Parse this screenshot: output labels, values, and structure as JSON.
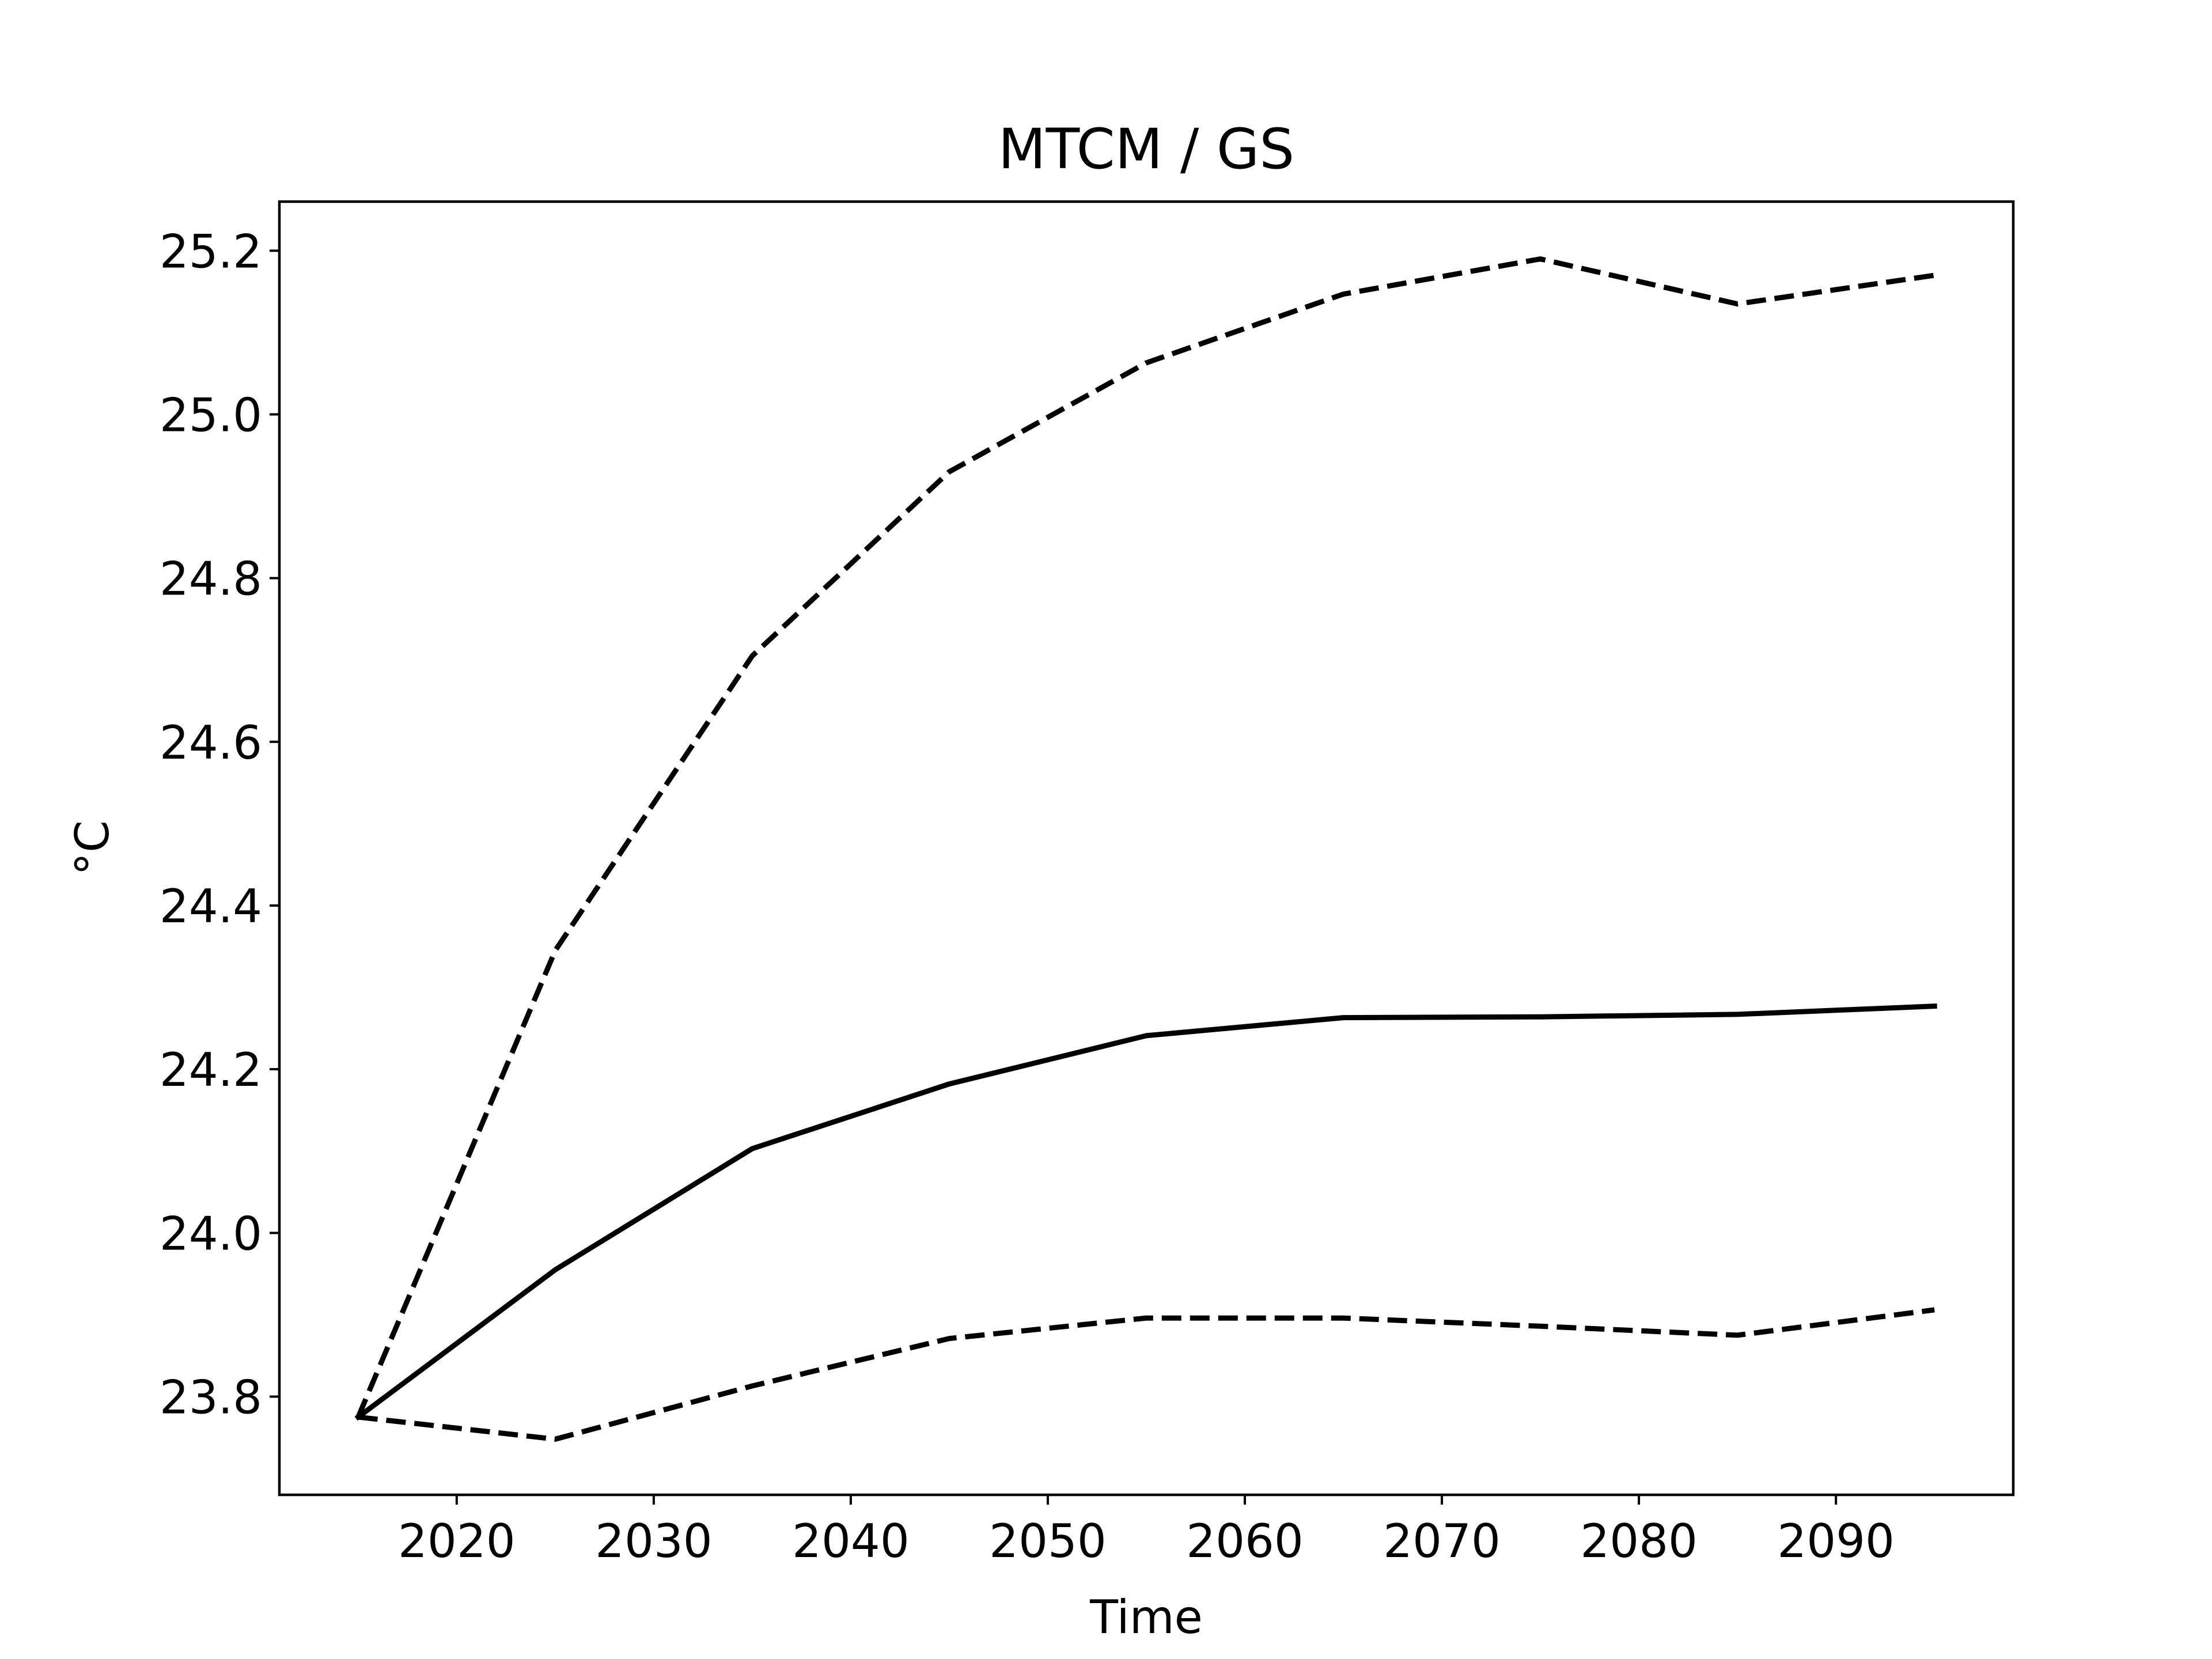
{
  "chart_data": {
    "type": "line",
    "title": "MTCM / GS",
    "xlabel": "Time",
    "ylabel": "°C",
    "x": [
      2015,
      2025,
      2035,
      2045,
      2055,
      2065,
      2075,
      2085,
      2095
    ],
    "xlim": [
      2011.0,
      2099.0
    ],
    "ylim": [
      23.68,
      25.26
    ],
    "xticks": [
      2020,
      2030,
      2040,
      2050,
      2060,
      2070,
      2080,
      2090
    ],
    "yticks": [
      23.8,
      24.0,
      24.2,
      24.4,
      24.6,
      24.8,
      25.0,
      25.2
    ],
    "xtick_labels": [
      "2020",
      "2030",
      "2040",
      "2050",
      "2060",
      "2070",
      "2080",
      "2090"
    ],
    "ytick_labels": [
      "23.8",
      "24.0",
      "24.2",
      "24.4",
      "24.6",
      "24.8",
      "25.0",
      "25.2"
    ],
    "grid": false,
    "series": [
      {
        "style": "solid",
        "color": "#000000",
        "values": [
          23.775,
          23.955,
          24.103,
          24.182,
          24.241,
          24.263,
          24.264,
          24.267,
          24.277
        ]
      },
      {
        "style": "dashed",
        "color": "#000000",
        "values": [
          23.775,
          24.345,
          24.705,
          24.93,
          25.063,
          25.147,
          25.19,
          25.135,
          25.17
        ]
      },
      {
        "style": "dashed",
        "color": "#000000",
        "values": [
          23.775,
          23.748,
          23.813,
          23.871,
          23.896,
          23.896,
          23.886,
          23.875,
          23.906
        ]
      }
    ]
  }
}
